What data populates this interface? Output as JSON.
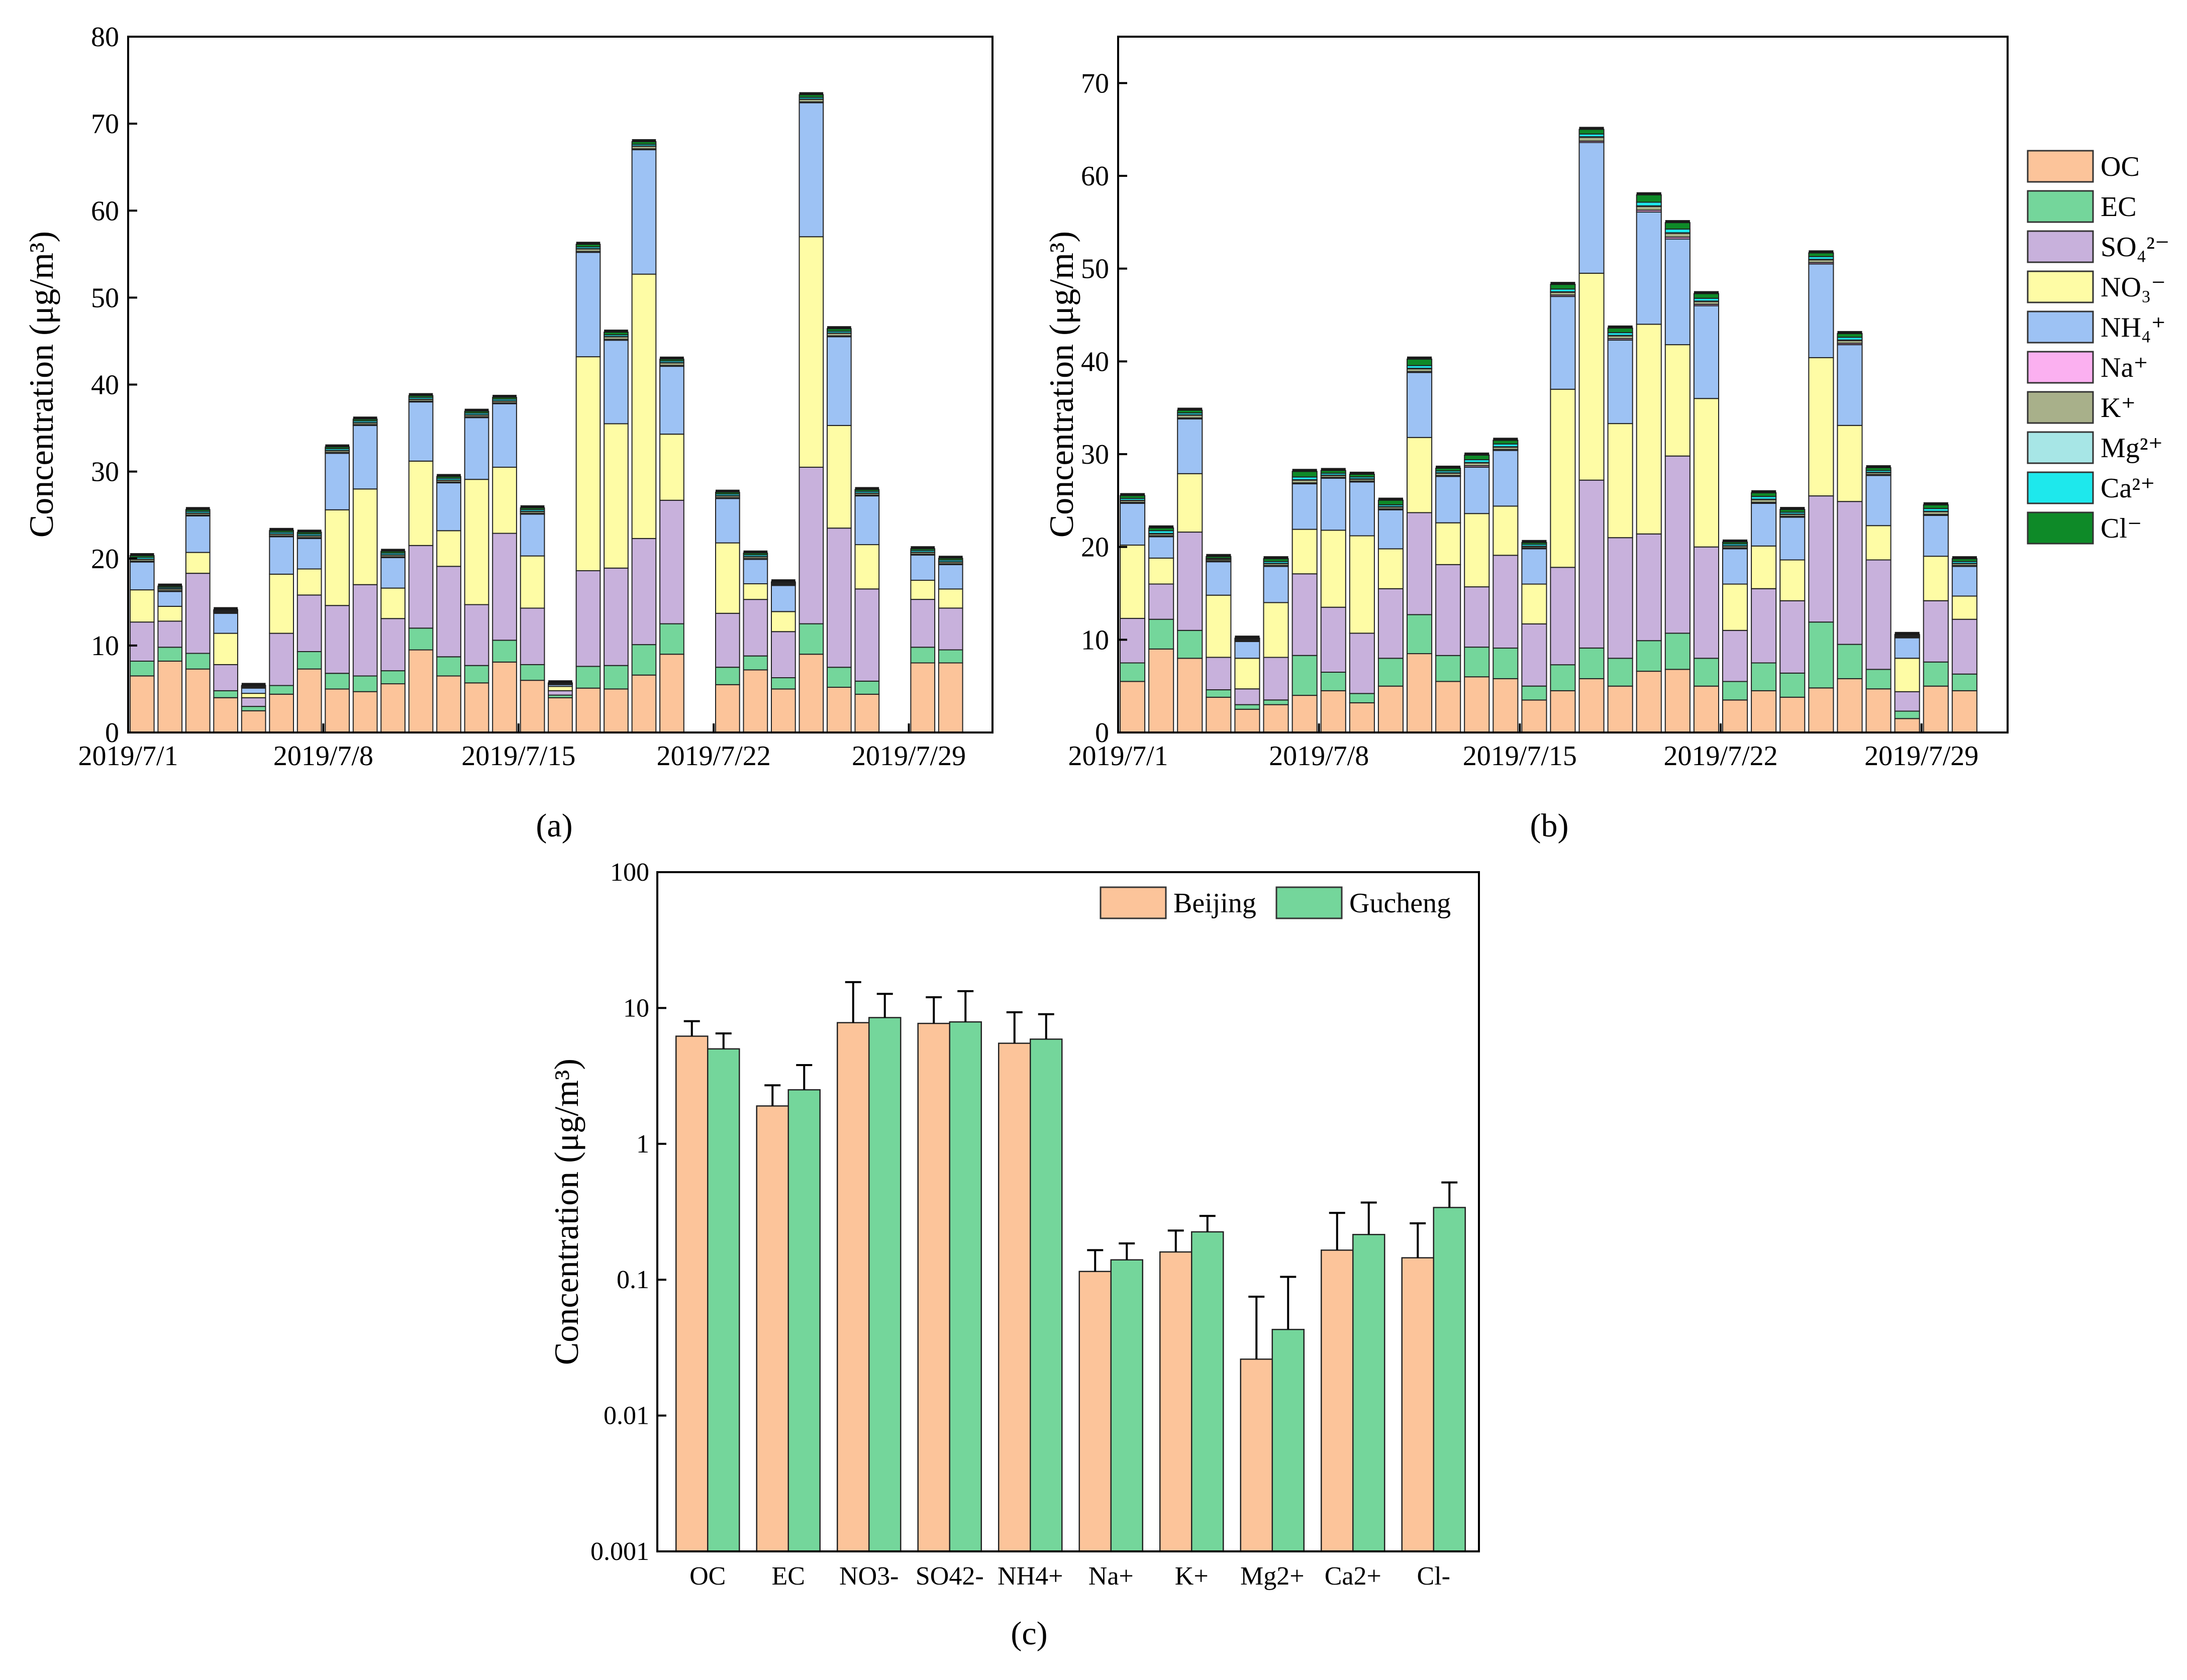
{
  "figure": {
    "panel_labels": [
      "(a)",
      "(b)",
      "(c)"
    ]
  },
  "colors": {
    "OC": "#fcc49a",
    "EC": "#74d69b",
    "SO4": "#c8b1dc",
    "NO3": "#fefca5",
    "NH4": "#9dc2f4",
    "Na": "#fbb0f0",
    "K": "#a8b08a",
    "Mg": "#a7e6e6",
    "Ca": "#1ee8ec",
    "Cl": "#0e8a28",
    "cap": "#1a1a1a",
    "Beijing": "#fcc49a",
    "Gucheng": "#74d69b"
  },
  "chart_data": [
    {
      "type": "bar",
      "stacked": true,
      "panel": "(a)",
      "ylabel": "Concentration (μg/m³)",
      "ylim": [
        0,
        80
      ],
      "yticks": [
        "0",
        "10",
        "20",
        "30",
        "40",
        "50",
        "60",
        "70",
        "80"
      ],
      "xtick_labels": [
        {
          "label": "2019/7/1",
          "day": 1
        },
        {
          "label": "2019/7/8",
          "day": 8
        },
        {
          "label": "2019/7/15",
          "day": 15
        },
        {
          "label": "2019/7/22",
          "day": 22
        },
        {
          "label": "2019/7/29",
          "day": 29
        }
      ],
      "days": [
        1,
        2,
        3,
        4,
        5,
        6,
        7,
        8,
        9,
        10,
        11,
        12,
        13,
        14,
        15,
        16,
        17,
        18,
        19,
        20,
        21,
        22,
        23,
        24,
        25,
        26,
        27,
        28,
        29,
        30,
        31
      ],
      "series": [
        {
          "name": "OC",
          "key": "OC",
          "values": [
            6.5,
            8.2,
            7.3,
            4.0,
            2.5,
            4.4,
            7.3,
            5.0,
            4.7,
            5.6,
            9.5,
            6.5,
            5.7,
            8.1,
            6.0,
            4.0,
            5.1,
            5.0,
            6.6,
            9.0,
            0,
            5.5,
            7.2,
            5.0,
            9.0,
            5.2,
            4.4,
            0,
            8.0,
            8.0,
            0
          ]
        },
        {
          "name": "EC",
          "key": "EC",
          "values": [
            1.7,
            1.6,
            1.8,
            0.8,
            0.5,
            1.0,
            2.0,
            1.8,
            1.8,
            1.5,
            2.5,
            2.2,
            2.0,
            2.5,
            1.8,
            0.3,
            2.5,
            2.7,
            3.5,
            3.5,
            0,
            2.0,
            1.6,
            1.3,
            3.5,
            2.3,
            1.5,
            0,
            1.8,
            1.5,
            0
          ]
        },
        {
          "name": "SO₄²⁻",
          "key": "SO4",
          "values": [
            4.5,
            3.0,
            9.2,
            3.0,
            1.0,
            6.0,
            6.5,
            7.8,
            10.5,
            6.0,
            9.5,
            10.4,
            7.0,
            12.3,
            6.5,
            0.5,
            11.0,
            11.2,
            12.2,
            14.2,
            0,
            6.2,
            6.5,
            5.3,
            18.0,
            16.0,
            10.6,
            0,
            5.5,
            4.8,
            0
          ]
        },
        {
          "name": "NO₃⁻",
          "key": "NO3",
          "values": [
            3.7,
            1.7,
            2.4,
            3.6,
            0.5,
            6.8,
            3.0,
            11.0,
            11.0,
            3.5,
            9.7,
            4.1,
            14.4,
            7.6,
            6.0,
            0.5,
            24.6,
            16.6,
            30.4,
            7.6,
            0,
            8.1,
            1.8,
            2.3,
            26.5,
            11.8,
            5.1,
            0,
            2.2,
            2.2,
            0
          ]
        },
        {
          "name": "NH₄⁺",
          "key": "NH4",
          "values": [
            3.2,
            1.7,
            4.2,
            2.3,
            0.6,
            4.3,
            3.5,
            6.5,
            7.3,
            3.5,
            6.8,
            5.5,
            7.1,
            7.3,
            4.8,
            0.2,
            12.0,
            9.6,
            14.3,
            7.8,
            0,
            5.1,
            2.8,
            3.0,
            15.4,
            10.2,
            5.6,
            0,
            2.9,
            2.8,
            0
          ]
        },
        {
          "name": "Na⁺",
          "key": "Na",
          "values": [
            0.1,
            0.1,
            0.1,
            0.1,
            0.05,
            0.1,
            0.1,
            0.1,
            0.1,
            0.1,
            0.1,
            0.1,
            0.1,
            0.1,
            0.1,
            0.05,
            0.1,
            0.1,
            0.1,
            0.1,
            0,
            0.1,
            0.1,
            0.1,
            0.1,
            0.1,
            0.1,
            0,
            0.1,
            0.1,
            0
          ]
        },
        {
          "name": "K⁺",
          "key": "K",
          "values": [
            0.2,
            0.2,
            0.2,
            0.1,
            0.1,
            0.2,
            0.2,
            0.2,
            0.2,
            0.2,
            0.2,
            0.2,
            0.2,
            0.2,
            0.2,
            0.05,
            0.3,
            0.3,
            0.3,
            0.3,
            0,
            0.2,
            0.2,
            0.1,
            0.3,
            0.3,
            0.2,
            0,
            0.2,
            0.2,
            0
          ]
        },
        {
          "name": "Mg²⁺",
          "key": "Mg",
          "values": [
            0.03,
            0.03,
            0.03,
            0.02,
            0.01,
            0.03,
            0.03,
            0.03,
            0.03,
            0.03,
            0.03,
            0.03,
            0.03,
            0.03,
            0.03,
            0.01,
            0.03,
            0.03,
            0.03,
            0.03,
            0,
            0.03,
            0.03,
            0.02,
            0.03,
            0.03,
            0.03,
            0,
            0.03,
            0.03,
            0
          ]
        },
        {
          "name": "Ca²⁺",
          "key": "Ca",
          "values": [
            0.2,
            0.15,
            0.2,
            0.1,
            0.1,
            0.2,
            0.2,
            0.2,
            0.2,
            0.2,
            0.2,
            0.2,
            0.2,
            0.2,
            0.2,
            0.05,
            0.2,
            0.2,
            0.2,
            0.2,
            0,
            0.2,
            0.2,
            0.1,
            0.2,
            0.2,
            0.2,
            0,
            0.2,
            0.2,
            0
          ]
        },
        {
          "name": "Cl⁻",
          "key": "Cl",
          "values": [
            0.2,
            0.15,
            0.2,
            0.1,
            0.05,
            0.2,
            0.2,
            0.2,
            0.2,
            0.2,
            0.2,
            0.2,
            0.2,
            0.2,
            0.2,
            0.05,
            0.3,
            0.3,
            0.3,
            0.2,
            0,
            0.2,
            0.2,
            0.1,
            0.3,
            0.3,
            0.2,
            0,
            0.2,
            0.2,
            0
          ]
        }
      ]
    },
    {
      "type": "bar",
      "stacked": true,
      "panel": "(b)",
      "ylabel": "Concentration (μg/m³)",
      "ylim": [
        0,
        75
      ],
      "yticks": [
        "0",
        "10",
        "20",
        "30",
        "40",
        "50",
        "60",
        "70"
      ],
      "xtick_labels": [
        {
          "label": "2019/7/1",
          "day": 1
        },
        {
          "label": "2019/7/8",
          "day": 8
        },
        {
          "label": "2019/7/15",
          "day": 15
        },
        {
          "label": "2019/7/22",
          "day": 22
        },
        {
          "label": "2019/7/29",
          "day": 29
        }
      ],
      "days": [
        1,
        2,
        3,
        4,
        5,
        6,
        7,
        8,
        9,
        10,
        11,
        12,
        13,
        14,
        15,
        16,
        17,
        18,
        19,
        20,
        21,
        22,
        23,
        24,
        25,
        26,
        27,
        28,
        29,
        30,
        31
      ],
      "series": [
        {
          "name": "OC",
          "key": "OC",
          "values": [
            5.5,
            9.0,
            8.0,
            3.8,
            2.5,
            3.0,
            4.0,
            4.5,
            3.2,
            5.0,
            8.5,
            5.5,
            6.0,
            5.8,
            3.5,
            4.5,
            5.8,
            5.0,
            6.6,
            6.8,
            5.0,
            3.5,
            4.5,
            3.8,
            4.8,
            5.8,
            4.7,
            1.5,
            5.0,
            4.5,
            0
          ]
        },
        {
          "name": "EC",
          "key": "EC",
          "values": [
            2.0,
            3.2,
            3.0,
            0.8,
            0.5,
            0.5,
            4.3,
            2.0,
            1.0,
            3.0,
            4.2,
            2.8,
            3.2,
            3.3,
            1.5,
            2.8,
            3.3,
            3.0,
            3.3,
            3.9,
            3.0,
            2.0,
            3.0,
            2.6,
            7.1,
            3.7,
            2.1,
            0.8,
            2.6,
            1.8,
            0
          ]
        },
        {
          "name": "SO₄²⁻",
          "key": "SO4",
          "values": [
            4.8,
            3.8,
            10.6,
            3.5,
            1.7,
            4.6,
            8.8,
            7.0,
            6.5,
            7.5,
            11.0,
            9.8,
            6.5,
            10.0,
            6.7,
            10.5,
            18.1,
            13.0,
            11.5,
            19.1,
            12.0,
            5.5,
            8.0,
            7.8,
            13.6,
            15.4,
            11.8,
            2.1,
            6.6,
            5.9,
            0
          ]
        },
        {
          "name": "NO₃⁻",
          "key": "NO3",
          "values": [
            7.9,
            2.8,
            6.3,
            6.7,
            3.3,
            5.9,
            4.8,
            8.3,
            10.5,
            4.3,
            8.1,
            4.5,
            7.9,
            5.3,
            4.3,
            19.2,
            22.3,
            12.3,
            22.6,
            12.0,
            16.0,
            5.0,
            4.6,
            4.4,
            14.9,
            8.2,
            3.7,
            3.6,
            4.8,
            2.5,
            0
          ]
        },
        {
          "name": "NH₄⁺",
          "key": "NH4",
          "values": [
            4.5,
            2.3,
            5.9,
            3.6,
            1.8,
            3.9,
            4.9,
            5.6,
            5.8,
            4.2,
            7.0,
            5.0,
            5.0,
            6.0,
            3.8,
            10.0,
            14.1,
            9.0,
            12.1,
            11.4,
            10.0,
            3.8,
            4.6,
            4.6,
            10.1,
            8.7,
            5.4,
            2.2,
            4.4,
            3.2,
            0
          ]
        },
        {
          "name": "Na⁺",
          "key": "Na",
          "values": [
            0.1,
            0.1,
            0.1,
            0.1,
            0.05,
            0.1,
            0.1,
            0.1,
            0.1,
            0.1,
            0.1,
            0.1,
            0.15,
            0.1,
            0.1,
            0.15,
            0.15,
            0.15,
            0.2,
            0.2,
            0.15,
            0.1,
            0.1,
            0.1,
            0.15,
            0.15,
            0.1,
            0.05,
            0.1,
            0.1,
            0
          ]
        },
        {
          "name": "K⁺",
          "key": "K",
          "values": [
            0.2,
            0.2,
            0.3,
            0.15,
            0.1,
            0.2,
            0.3,
            0.2,
            0.2,
            0.2,
            0.3,
            0.25,
            0.3,
            0.25,
            0.15,
            0.3,
            0.4,
            0.3,
            0.4,
            0.4,
            0.3,
            0.2,
            0.3,
            0.2,
            0.3,
            0.3,
            0.2,
            0.1,
            0.3,
            0.2,
            0
          ]
        },
        {
          "name": "Mg²⁺",
          "key": "Mg",
          "values": [
            0.03,
            0.05,
            0.04,
            0.02,
            0.02,
            0.03,
            0.04,
            0.04,
            0.04,
            0.04,
            0.05,
            0.04,
            0.05,
            0.05,
            0.03,
            0.05,
            0.06,
            0.05,
            0.06,
            0.06,
            0.05,
            0.03,
            0.04,
            0.04,
            0.05,
            0.05,
            0.04,
            0.02,
            0.04,
            0.03,
            0
          ]
        },
        {
          "name": "Ca²⁺",
          "key": "Ca",
          "values": [
            0.2,
            0.3,
            0.2,
            0.1,
            0.1,
            0.2,
            0.3,
            0.2,
            0.2,
            0.2,
            0.3,
            0.2,
            0.3,
            0.3,
            0.2,
            0.3,
            0.3,
            0.3,
            0.4,
            0.4,
            0.3,
            0.2,
            0.3,
            0.2,
            0.3,
            0.3,
            0.2,
            0.1,
            0.3,
            0.2,
            0
          ]
        },
        {
          "name": "Cl⁻",
          "key": "Cl",
          "values": [
            0.3,
            0.3,
            0.3,
            0.2,
            0.1,
            0.3,
            0.6,
            0.3,
            0.3,
            0.5,
            0.7,
            0.3,
            0.5,
            0.4,
            0.2,
            0.5,
            0.5,
            0.5,
            0.8,
            0.7,
            0.5,
            0.2,
            0.4,
            0.3,
            0.4,
            0.4,
            0.3,
            0.1,
            0.4,
            0.3,
            0
          ]
        }
      ],
      "legend_items": [
        {
          "key": "OC",
          "label": "OC"
        },
        {
          "key": "EC",
          "label": "EC"
        },
        {
          "key": "SO4",
          "label": "SO₄²⁻"
        },
        {
          "key": "NO3",
          "label": "NO₃⁻"
        },
        {
          "key": "NH4",
          "label": "NH₄⁺"
        },
        {
          "key": "Na",
          "label": "Na⁺"
        },
        {
          "key": "K",
          "label": "K⁺"
        },
        {
          "key": "Mg",
          "label": "Mg²⁺"
        },
        {
          "key": "Ca",
          "label": "Ca²⁺"
        },
        {
          "key": "Cl",
          "label": "Cl⁻"
        }
      ]
    },
    {
      "type": "bar",
      "panel": "(c)",
      "yscale": "log",
      "ylabel": "Concentration (μg/m³)",
      "ylim": [
        0.001,
        100
      ],
      "yticks": [
        "0.001",
        "0.01",
        "0.1",
        "1",
        "10",
        "100"
      ],
      "categories": [
        "OC",
        "EC",
        "NO3-",
        "SO42-",
        "NH4+",
        "Na+",
        "K+",
        "Mg2+",
        "Ca2+",
        "Cl-"
      ],
      "series": [
        {
          "name": "Beijing",
          "values": [
            6.2,
            1.9,
            7.8,
            7.7,
            5.5,
            0.115,
            0.16,
            0.026,
            0.165,
            0.145
          ],
          "errors": [
            8.0,
            2.7,
            15.5,
            12.0,
            9.3,
            0.165,
            0.23,
            0.075,
            0.31,
            0.26
          ]
        },
        {
          "name": "Gucheng",
          "values": [
            5.0,
            2.5,
            8.5,
            7.9,
            5.9,
            0.14,
            0.225,
            0.043,
            0.215,
            0.34
          ],
          "errors": [
            6.5,
            3.8,
            12.7,
            13.3,
            9.0,
            0.185,
            0.295,
            0.105,
            0.37,
            0.52
          ]
        }
      ],
      "legend": [
        "Beijing",
        "Gucheng"
      ]
    }
  ]
}
